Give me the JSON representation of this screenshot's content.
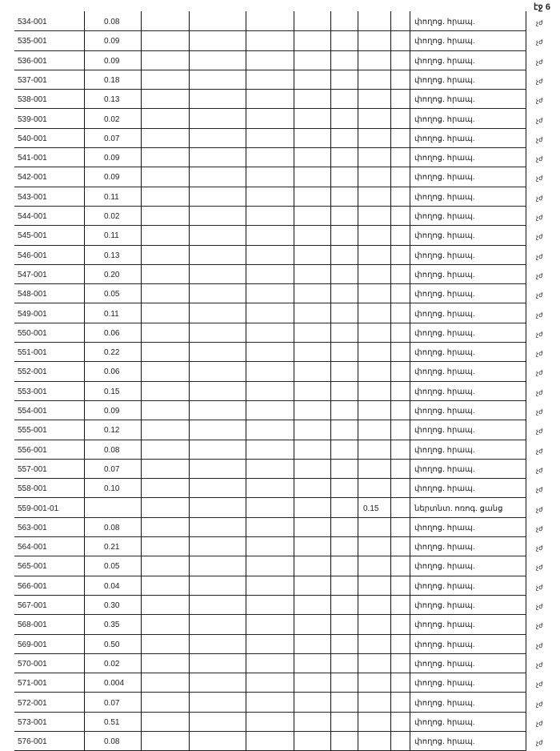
{
  "page_label": "էջ 6",
  "rows": [
    {
      "id": "534-001",
      "area": "0.08",
      "col8": "",
      "type": "փողոց. հրապ.",
      "unit": "չժ"
    },
    {
      "id": "535-001",
      "area": "0.09",
      "col8": "",
      "type": "փողոց. հրապ.",
      "unit": "չժ"
    },
    {
      "id": "536-001",
      "area": "0.09",
      "col8": "",
      "type": "փողոց. հրապ.",
      "unit": "չժ"
    },
    {
      "id": "537-001",
      "area": "0.18",
      "col8": "",
      "type": "փողոց. հրապ.",
      "unit": "չժ"
    },
    {
      "id": "538-001",
      "area": "0.13",
      "col8": "",
      "type": "փողոց. հրապ.",
      "unit": "չժ"
    },
    {
      "id": "539-001",
      "area": "0.02",
      "col8": "",
      "type": "փողոց. հրապ.",
      "unit": "չժ"
    },
    {
      "id": "540-001",
      "area": "0.07",
      "col8": "",
      "type": "փողոց. հրապ.",
      "unit": "չժ"
    },
    {
      "id": "541-001",
      "area": "0.09",
      "col8": "",
      "type": "փողոց. հրապ.",
      "unit": "չժ"
    },
    {
      "id": "542-001",
      "area": "0.09",
      "col8": "",
      "type": "փողոց. հրապ.",
      "unit": "չժ"
    },
    {
      "id": "543-001",
      "area": "0.11",
      "col8": "",
      "type": "փողոց. հրապ.",
      "unit": "չժ"
    },
    {
      "id": "544-001",
      "area": "0.02",
      "col8": "",
      "type": "փողոց. հրապ.",
      "unit": "չժ"
    },
    {
      "id": "545-001",
      "area": "0.11",
      "col8": "",
      "type": "փողոց. հրապ.",
      "unit": "չժ"
    },
    {
      "id": "546-001",
      "area": "0.13",
      "col8": "",
      "type": "փողոց. հրապ.",
      "unit": "չժ"
    },
    {
      "id": "547-001",
      "area": "0.20",
      "col8": "",
      "type": "փողոց. հրապ.",
      "unit": "չժ"
    },
    {
      "id": "548-001",
      "area": "0.05",
      "col8": "",
      "type": "փողոց. հրապ.",
      "unit": "չժ"
    },
    {
      "id": "549-001",
      "area": "0.11",
      "col8": "",
      "type": "փողոց. հրապ.",
      "unit": "չժ"
    },
    {
      "id": "550-001",
      "area": "0.06",
      "col8": "",
      "type": "փողոց. հրապ.",
      "unit": "չժ"
    },
    {
      "id": "551-001",
      "area": "0.22",
      "col8": "",
      "type": "փողոց. հրապ.",
      "unit": "չժ"
    },
    {
      "id": "552-001",
      "area": "0.06",
      "col8": "",
      "type": "փողոց. հրապ.",
      "unit": "չժ"
    },
    {
      "id": "553-001",
      "area": "0.15",
      "col8": "",
      "type": "փողոց. հրապ.",
      "unit": "չժ"
    },
    {
      "id": "554-001",
      "area": "0.09",
      "col8": "",
      "type": "փողոց. հրապ.",
      "unit": "չժ"
    },
    {
      "id": "555-001",
      "area": "0.12",
      "col8": "",
      "type": "փողոց. հրապ.",
      "unit": "չժ"
    },
    {
      "id": "556-001",
      "area": "0.08",
      "col8": "",
      "type": "փողոց. հրապ.",
      "unit": "չժ"
    },
    {
      "id": "557-001",
      "area": "0.07",
      "col8": "",
      "type": "փողոց. հրապ.",
      "unit": "չժ"
    },
    {
      "id": "558-001",
      "area": "0.10",
      "col8": "",
      "type": "փողոց. հրապ.",
      "unit": "չժ"
    },
    {
      "id": "559-001-01",
      "area": "",
      "col8": "0.15",
      "type": "ներտնտ. ոռոգ. ցանց",
      "unit": "չժ"
    },
    {
      "id": "563-001",
      "area": "0.08",
      "col8": "",
      "type": "փողոց. հրապ.",
      "unit": "չժ"
    },
    {
      "id": "564-001",
      "area": "0.21",
      "col8": "",
      "type": "փողոց. հրապ.",
      "unit": "չժ"
    },
    {
      "id": "565-001",
      "area": "0.05",
      "col8": "",
      "type": "փողոց. հրապ.",
      "unit": "չժ"
    },
    {
      "id": "566-001",
      "area": "0.04",
      "col8": "",
      "type": "փողոց. հրապ.",
      "unit": "չժ"
    },
    {
      "id": "567-001",
      "area": "0.30",
      "col8": "",
      "type": "փողոց. հրապ.",
      "unit": "չժ"
    },
    {
      "id": "568-001",
      "area": "0.35",
      "col8": "",
      "type": "փողոց. հրապ.",
      "unit": "չժ"
    },
    {
      "id": "569-001",
      "area": "0.50",
      "col8": "",
      "type": "փողոց. հրապ.",
      "unit": "չժ"
    },
    {
      "id": "570-001",
      "area": "0.02",
      "col8": "",
      "type": "փողոց. հրապ.",
      "unit": "չժ"
    },
    {
      "id": "571-001",
      "area": "0.004",
      "col8": "",
      "type": "փողոց. հրապ.",
      "unit": "չժ"
    },
    {
      "id": "572-001",
      "area": "0.07",
      "col8": "",
      "type": "փողոց. հրապ.",
      "unit": "չժ"
    },
    {
      "id": "573-001",
      "area": "0.51",
      "col8": "",
      "type": "փողոց. հրապ.",
      "unit": "չժ"
    },
    {
      "id": "576-001",
      "area": "0.08",
      "col8": "",
      "type": "փողոց. հրապ.",
      "unit": "չժ"
    }
  ]
}
